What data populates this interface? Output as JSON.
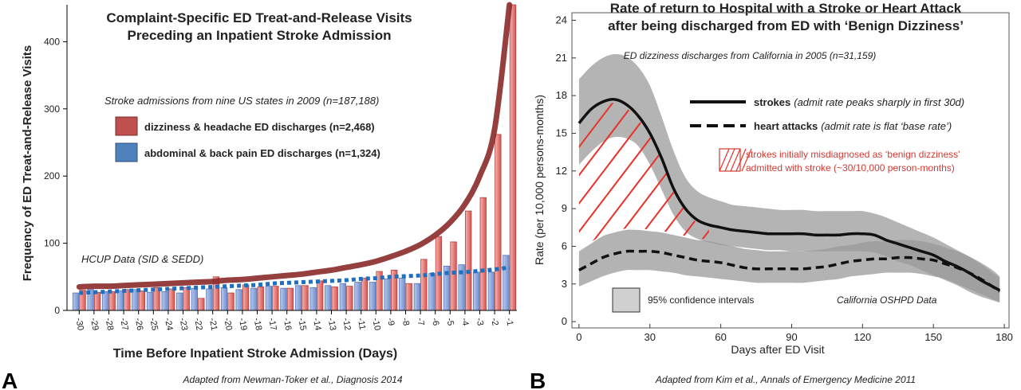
{
  "panels": {
    "a_letter": "A",
    "b_letter": "B",
    "a_credit": "Adapted from Newman-Toker et al., Diagnosis 2014",
    "b_credit": "Adapted from Kim et al., Annals of Emergency Medicine 2011"
  },
  "chart_data": [
    {
      "type": "bar",
      "title": "Complaint-Specific ED Treat-and-Release Visits",
      "subtitle": "Preceding an Inpatient Stroke Admission",
      "xlabel": "Time Before Inpatient Stroke Admission (Days)",
      "ylabel": "Frequency of ED Treat-and-Release Visits",
      "ylim": [
        0,
        455
      ],
      "yticks": [
        0,
        100,
        200,
        300,
        400
      ],
      "categories": [
        "-30",
        "-29",
        "-28",
        "-27",
        "-26",
        "-25",
        "-24",
        "-23",
        "-22",
        "-21",
        "-20",
        "-19",
        "-18",
        "-17",
        "-16",
        "-15",
        "-14",
        "-13",
        "-12",
        "-11",
        "-10",
        "-9",
        "-8",
        "-7",
        "-6",
        "-5",
        "-4",
        "-3",
        "-2",
        "-1"
      ],
      "series": [
        {
          "name": "dizziness & headache ED discharges (n=2,468)",
          "color": "#c0504d",
          "values": [
            30,
            27,
            28,
            31,
            29,
            34,
            32,
            34,
            18,
            50,
            26,
            38,
            35,
            36,
            33,
            37,
            44,
            35,
            36,
            48,
            58,
            60,
            40,
            76,
            110,
            102,
            148,
            168,
            262,
            455
          ]
        },
        {
          "name": "abdominal & back pain ED discharges (n=1,324)",
          "color": "#4f81bd",
          "values": [
            26,
            31,
            28,
            29,
            31,
            27,
            28,
            26,
            33,
            32,
            34,
            31,
            33,
            36,
            33,
            37,
            34,
            37,
            40,
            42,
            42,
            47,
            48,
            40,
            55,
            66,
            68,
            57,
            57,
            82
          ]
        }
      ],
      "trendlines": [
        {
          "series": 0,
          "style": "solid",
          "color": "#8b2a2a",
          "values": [
            35,
            36,
            36,
            37,
            38,
            39,
            40,
            41,
            42,
            43,
            45,
            46,
            48,
            50,
            52,
            54,
            57,
            60,
            64,
            68,
            73,
            80,
            88,
            98,
            112,
            131,
            158,
            200,
            270,
            455
          ]
        },
        {
          "series": 1,
          "style": "dotted",
          "color": "#1f6fc0",
          "values": [
            26,
            27,
            28,
            29,
            30,
            31,
            32,
            33,
            34,
            35,
            36,
            37,
            38,
            40,
            41,
            42,
            43,
            44,
            45,
            47,
            48,
            50,
            51,
            52,
            54,
            56,
            57,
            59,
            61,
            64
          ]
        }
      ],
      "annotations": {
        "source_note": "Stroke admissions from nine US states in 2009 (n=187,188)",
        "data_label": "HCUP Data (SID & SEDD)"
      },
      "legend_placement": "upper-left",
      "grid": false
    },
    {
      "type": "line",
      "title": "Rate of return to Hospital with a Stroke or Heart Attack",
      "subtitle": "after being discharged from ED with ‘Benign Dizziness’",
      "xlabel": "Days after ED Visit",
      "ylabel": "Rate (per 10,000 persons-months)",
      "xlim": [
        -3,
        182
      ],
      "ylim": [
        -0.5,
        24.6
      ],
      "xticks": [
        0,
        30,
        60,
        90,
        120,
        150,
        180
      ],
      "yticks": [
        0,
        3,
        6,
        9,
        12,
        15,
        18,
        21,
        24
      ],
      "x": [
        0,
        5,
        10,
        15,
        20,
        25,
        30,
        35,
        40,
        45,
        50,
        55,
        60,
        65,
        70,
        75,
        80,
        85,
        90,
        95,
        100,
        105,
        110,
        115,
        120,
        125,
        130,
        135,
        140,
        145,
        150,
        155,
        160,
        165,
        170,
        175,
        178
      ],
      "series": [
        {
          "name": "strokes",
          "style": "solid",
          "values": [
            15.8,
            16.9,
            17.5,
            17.7,
            17.3,
            16.4,
            15.0,
            13.0,
            10.6,
            9.0,
            8.1,
            7.7,
            7.5,
            7.3,
            7.2,
            7.1,
            7.0,
            7.0,
            7.0,
            7.0,
            6.9,
            6.9,
            6.9,
            7.0,
            7.0,
            6.9,
            6.5,
            6.2,
            5.9,
            5.6,
            5.3,
            4.8,
            4.4,
            3.9,
            3.3,
            2.8,
            2.5
          ],
          "lower": [
            12.5,
            13.5,
            14.3,
            14.7,
            14.6,
            14.0,
            12.5,
            10.5,
            8.5,
            7.2,
            6.6,
            6.3,
            6.1,
            6.0,
            5.9,
            5.8,
            5.7,
            5.7,
            5.6,
            5.6,
            5.6,
            5.6,
            5.6,
            5.6,
            5.6,
            5.5,
            5.2,
            4.8,
            4.5,
            4.1,
            3.7,
            3.3,
            2.9,
            2.4,
            2.0,
            1.7,
            1.5
          ],
          "upper": [
            19.3,
            20.3,
            21.0,
            21.3,
            21.1,
            20.3,
            18.8,
            16.3,
            13.6,
            11.5,
            10.4,
            9.9,
            9.6,
            9.3,
            9.2,
            9.1,
            9.0,
            8.9,
            8.9,
            8.9,
            8.8,
            8.8,
            8.8,
            8.8,
            8.8,
            8.6,
            8.3,
            7.9,
            7.5,
            7.1,
            6.7,
            6.2,
            5.7,
            5.2,
            4.6,
            3.9,
            3.5
          ]
        },
        {
          "name": "heart attacks",
          "style": "dashed",
          "values": [
            4.1,
            4.6,
            5.1,
            5.4,
            5.6,
            5.6,
            5.6,
            5.5,
            5.3,
            5.1,
            4.9,
            4.8,
            4.7,
            4.5,
            4.3,
            4.2,
            4.2,
            4.2,
            4.2,
            4.2,
            4.3,
            4.4,
            4.6,
            4.8,
            4.9,
            5.0,
            5.0,
            5.1,
            5.1,
            5.0,
            4.9,
            4.6,
            4.3,
            3.9,
            3.4,
            2.8,
            2.4
          ],
          "lower": [
            2.8,
            3.2,
            3.6,
            3.9,
            4.1,
            4.1,
            4.1,
            4.0,
            3.9,
            3.7,
            3.6,
            3.5,
            3.4,
            3.3,
            3.2,
            3.1,
            3.1,
            3.1,
            3.1,
            3.1,
            3.2,
            3.3,
            3.4,
            3.6,
            3.7,
            3.8,
            3.9,
            3.9,
            3.9,
            3.8,
            3.6,
            3.4,
            3.0,
            2.6,
            2.2,
            1.8,
            1.6
          ],
          "upper": [
            5.6,
            6.2,
            6.8,
            7.1,
            7.3,
            7.3,
            7.2,
            7.1,
            6.9,
            6.7,
            6.5,
            6.4,
            6.2,
            6.0,
            5.8,
            5.7,
            5.6,
            5.6,
            5.6,
            5.6,
            5.7,
            5.8,
            6.0,
            6.1,
            6.3,
            6.4,
            6.4,
            6.5,
            6.5,
            6.4,
            6.2,
            5.9,
            5.6,
            5.2,
            4.7,
            4.1,
            3.6
          ]
        }
      ],
      "legend": [
        {
          "label": "strokes",
          "note": "(admit rate peaks sharply in first 30d)"
        },
        {
          "label": "heart attacks",
          "note": "(admit rate is flat ‘base rate’)"
        }
      ],
      "misdiagnosis_note": {
        "line1": "strokes initially misdiagnosed as ‘benign dizziness’",
        "line2": "admitted with stroke (~30/10,000 person-months)",
        "color": "#d23a32"
      },
      "annotations": {
        "source_note": "ED dizziness discharges from California in 2005 (n=31,159)",
        "ci_label": "95% confidence intervals",
        "data_label": "California OSHPD Data"
      },
      "colors": {
        "strokes_ci": "#b8b8b8",
        "heart_ci": "#a8a8a8",
        "overlap": "#8c8c8c",
        "hatch": "#e8312a"
      },
      "grid": false
    }
  ]
}
